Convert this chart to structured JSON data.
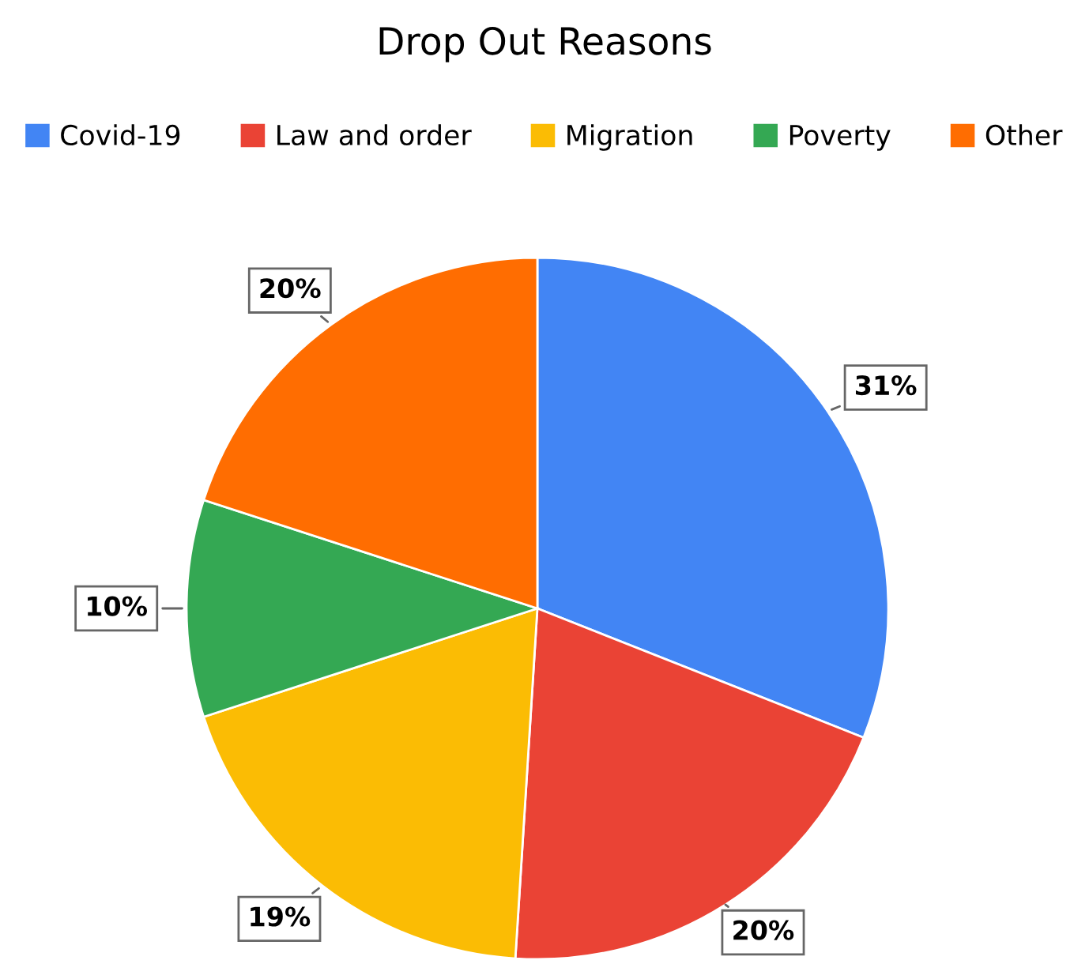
{
  "chart_data": {
    "type": "pie",
    "title": "Drop Out Reasons",
    "categories": [
      "Covid-19",
      "Law and order",
      "Migration",
      "Poverty",
      "Other"
    ],
    "values": [
      31,
      20,
      19,
      10,
      20
    ],
    "colors": [
      "#4285f4",
      "#ea4335",
      "#fbbc04",
      "#34a853",
      "#ff6d01"
    ],
    "value_labels": [
      "31%",
      "20%",
      "19%",
      "10%",
      "20%"
    ],
    "legend": "top"
  }
}
